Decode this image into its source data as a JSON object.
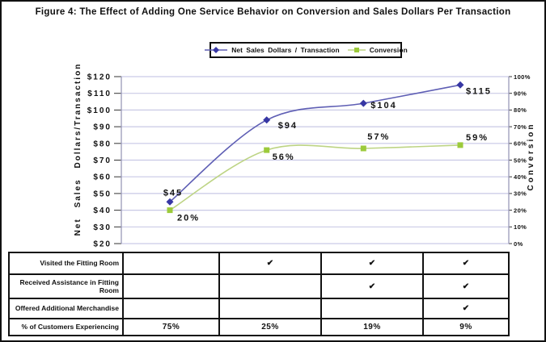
{
  "figure": {
    "title": "Figure 4: The Effect of Adding One Service Behavior on Conversion and Sales Dollars Per Transaction"
  },
  "chart_data": {
    "type": "line",
    "title": "Figure 4: The Effect of Adding One Service Behavior on Conversion and Sales Dollars Per Transaction",
    "grid": true,
    "legend_position": "top",
    "series": [
      {
        "id": "net-sales",
        "name": "Net Sales Dollars / Transaction",
        "axis": "left",
        "values": [
          45,
          94,
          104,
          115
        ],
        "point_labels": [
          "$45",
          "$94",
          "$104",
          "$115"
        ],
        "marker": "diamond",
        "line_color": "#5e5eb4",
        "marker_color": "#3737a4"
      },
      {
        "id": "conversion",
        "name": "Conversion",
        "axis": "right",
        "values": [
          20,
          56,
          57,
          59
        ],
        "point_labels": [
          "20%",
          "56%",
          "57%",
          "59%"
        ],
        "marker": "square",
        "line_color": "#bdd484",
        "marker_color": "#9cca3b"
      }
    ],
    "left_axis": {
      "title": "Net Sales Dollars/Transaction",
      "min": 20,
      "max": 120,
      "step": 10,
      "tick_labels": [
        "$20",
        "$30",
        "$40",
        "$50",
        "$60",
        "$70",
        "$80",
        "$90",
        "$100",
        "$110",
        "$120"
      ]
    },
    "right_axis": {
      "title": "Conversion",
      "min": 0,
      "max": 100,
      "step": 10,
      "tick_labels": [
        "0%",
        "10%",
        "20%",
        "30%",
        "40%",
        "50%",
        "60%",
        "70%",
        "80%",
        "90%",
        "100%"
      ]
    },
    "colors": {
      "gridline": "#c9c9e6",
      "axis_line": "#9a9ab8",
      "tick": "#333333",
      "label_text": "#111111"
    }
  },
  "table": {
    "rows": [
      {
        "label": "Visited the Fitting Room",
        "cells": [
          "",
          "✔",
          "✔",
          "✔"
        ]
      },
      {
        "label": "Received Assistance in Fitting Room",
        "cells": [
          "",
          "",
          "✔",
          "✔"
        ]
      },
      {
        "label": "Offered Additional Merchandise",
        "cells": [
          "",
          "",
          "",
          "✔"
        ]
      },
      {
        "label": "% of Customers Experiencing",
        "cells": [
          "75%",
          "25%",
          "19%",
          "9%"
        ]
      }
    ]
  }
}
